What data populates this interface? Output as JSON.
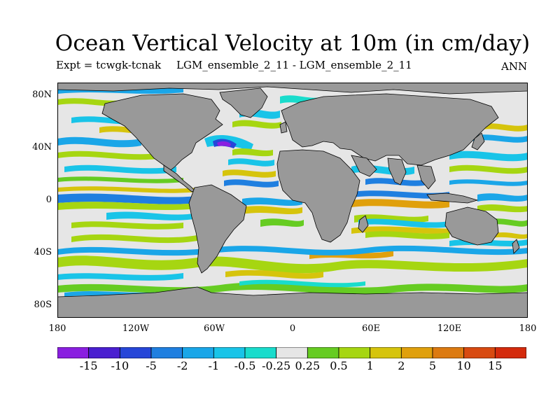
{
  "title": "Ocean Vertical Velocity at 10m (in cm/day)",
  "experiment": "Expt = tcwgk-tcnak",
  "run": "LGM_ensemble_2_11 - LGM_ensemble_2_11",
  "period": "ANN",
  "lat_labels": [
    "80N",
    "40N",
    "0",
    "40S",
    "80S"
  ],
  "lon_labels": [
    "180",
    "120W",
    "60W",
    "0",
    "60E",
    "120E",
    "180"
  ],
  "colorbar": {
    "labels": [
      "-15",
      "-10",
      "-5",
      "-2",
      "-1",
      "-0.5",
      "-0.25",
      "0.25",
      "0.5",
      "1",
      "2",
      "5",
      "10",
      "15"
    ],
    "colors": [
      "#8a1fe0",
      "#4a1fd0",
      "#2646d8",
      "#1f7fe0",
      "#1aa6e8",
      "#19c4e8",
      "#19dccc",
      "#e6e6e6",
      "#66cc22",
      "#a6d611",
      "#d6c40c",
      "#e0a00c",
      "#dc7a10",
      "#d84a10",
      "#d42a0c"
    ]
  },
  "map": {
    "land_color": "#999999",
    "ocean_neutral_color": "#e6e6e6",
    "coastline_color": "#000000"
  }
}
